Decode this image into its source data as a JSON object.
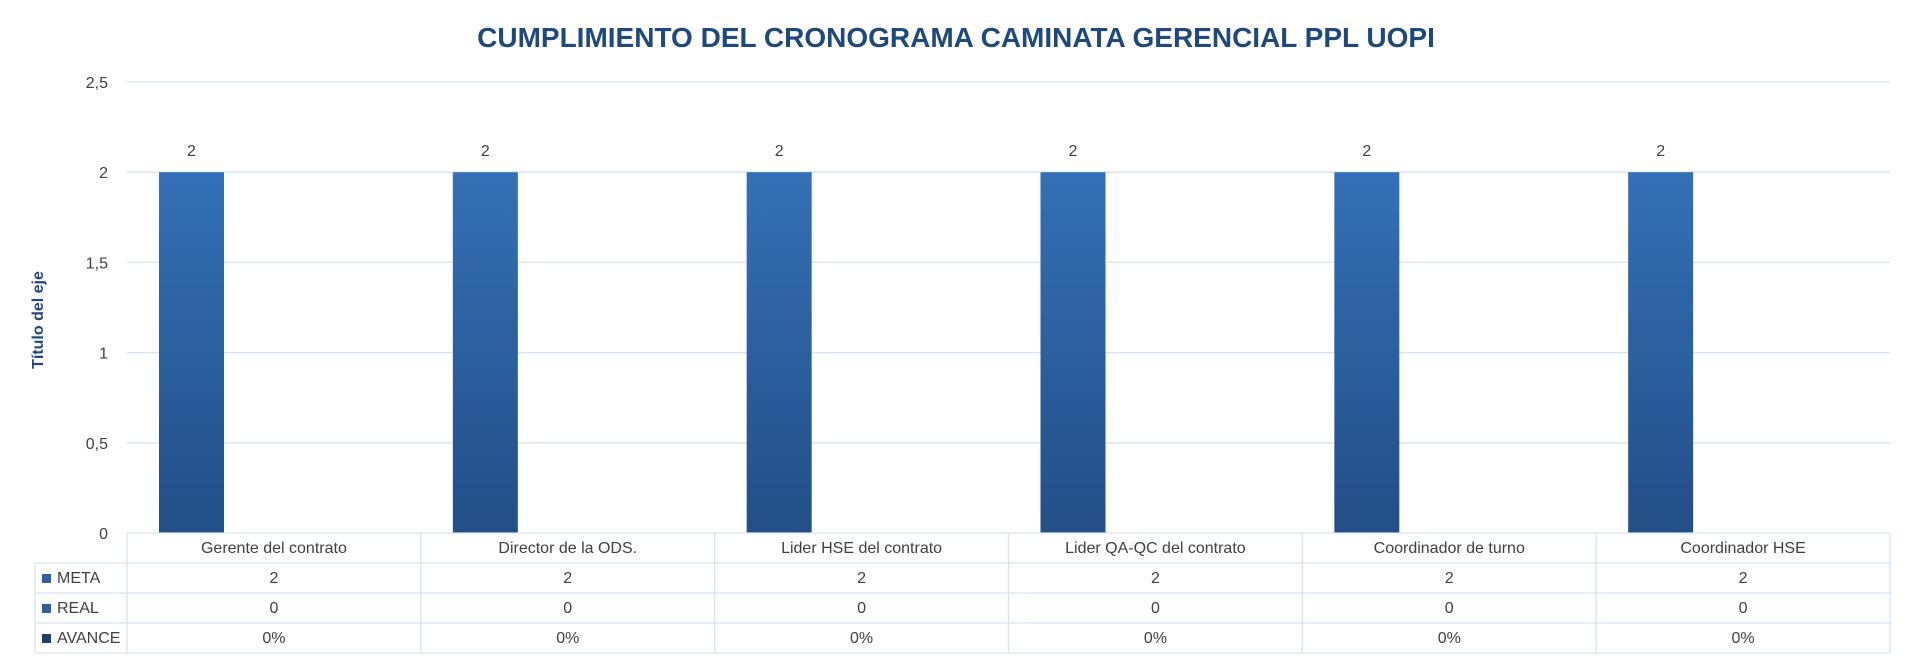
{
  "chart_data": {
    "type": "bar",
    "title": "CUMPLIMIENTO DEL CRONOGRAMA CAMINATA GERENCIAL PPL UOPI",
    "ylabel": "Título del eje",
    "xlabel": "",
    "ylim": [
      0,
      2.5
    ],
    "yticks": [
      "0",
      "0,5",
      "1",
      "1,5",
      "2",
      "2,5"
    ],
    "grid": true,
    "legend": "data-table",
    "categories": [
      "Gerente del contrato",
      "Director de la ODS.",
      "Lider HSE del contrato",
      "Lider QA-QC del contrato",
      "Coordinador de turno",
      "Coordinador HSE"
    ],
    "series": [
      {
        "name": "META",
        "values": [
          2,
          2,
          2,
          2,
          2,
          2
        ],
        "display": [
          "2",
          "2",
          "2",
          "2",
          "2",
          "2"
        ],
        "color": "#2E5E9E"
      },
      {
        "name": "REAL",
        "values": [
          0,
          0,
          0,
          0,
          0,
          0
        ],
        "display": [
          "0",
          "0",
          "0",
          "0",
          "0",
          "0"
        ],
        "color": "#2E5E9E"
      },
      {
        "name": "AVANCE",
        "values": [
          0,
          0,
          0,
          0,
          0,
          0
        ],
        "display": [
          "0%",
          "0%",
          "0%",
          "0%",
          "0%",
          "0%"
        ],
        "color": "#1F3F66"
      }
    ],
    "data_labels": [
      "2",
      "2",
      "2",
      "2",
      "2",
      "2"
    ],
    "colors": {
      "title": "#1F497D",
      "bar_top": "#3470B6",
      "bar_bottom": "#234E86",
      "grid": "#D6E2F0",
      "text": "#404040"
    }
  }
}
